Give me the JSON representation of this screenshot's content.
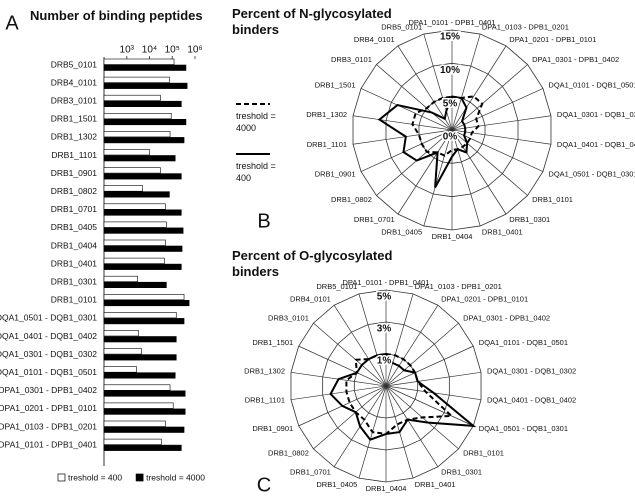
{
  "chart_data": [
    {
      "type": "barh",
      "panel": "A",
      "title": "Number of binding peptides",
      "categories": [
        "DRB5_0101",
        "DRB4_0101",
        "DRB3_0101",
        "DRB1_1501",
        "DRB1_1302",
        "DRB1_1101",
        "DRB1_0901",
        "DRB1_0802",
        "DRB1_0701",
        "DRB1_0405",
        "DRB1_0404",
        "DRB1_0401",
        "DRB1_0301",
        "DRB1_0101",
        "DQA1_0501 - DQB1_0301",
        "DQA1_0401 - DQB1_0402",
        "DQA1_0301 - DQB1_0302",
        "DQA1_0101 - DQB1_0501",
        "DPA1_0301 - DPB1_0402",
        "DPA1_0201 - DPB1_0101",
        "DPA1_0103 - DPB1_0201",
        "DPA1_0101 - DPB1_0401"
      ],
      "series": [
        {
          "name": "treshold = 400",
          "color": "#ffffff",
          "values": [
            120000,
            75000,
            30000,
            90000,
            80000,
            10000,
            30000,
            5000,
            50000,
            55000,
            50000,
            45000,
            3000,
            330000,
            150000,
            3300,
            4500,
            2700,
            80000,
            110000,
            50000,
            33000
          ]
        },
        {
          "name": "treshold = 4000",
          "color": "#000000",
          "values": [
            400000,
            450000,
            250000,
            400000,
            330000,
            135000,
            250000,
            75000,
            250000,
            300000,
            270000,
            250000,
            55000,
            550000,
            330000,
            150000,
            150000,
            135000,
            370000,
            370000,
            330000,
            250000
          ]
        }
      ],
      "xscale": "log",
      "xlim": [
        100,
        1000000
      ],
      "xticks": [
        {
          "value": 1000,
          "label": "10³"
        },
        {
          "value": 10000,
          "label": "10⁴"
        },
        {
          "value": 100000,
          "label": "10⁵"
        },
        {
          "value": 1000000,
          "label": "10⁶"
        }
      ]
    },
    {
      "type": "radar",
      "panel": "B",
      "title": "Percent of N-glycosylated binders",
      "categories": [
        "DPA1_0101 - DPB1_0401",
        "DPA1_0103 - DPB1_0201",
        "DPA1_0201 - DPB1_0101",
        "DPA1_0301 - DPB1_0402",
        "DQA1_0101 - DQB1_0501",
        "DQA1_0301 - DQB1_0302",
        "DQA1_0401 - DQB1_0402",
        "DQA1_0501 - DQB1_0301",
        "DRB1_0101",
        "DRB1_0301",
        "DRB1_0401",
        "DRB1_0404",
        "DRB1_0405",
        "DRB1_0701",
        "DRB1_0802",
        "DRB1_0901",
        "DRB1_1101",
        "DRB1_1302",
        "DRB1_1501",
        "DRB3_0101",
        "DRB4_0101",
        "DRB5_0101"
      ],
      "series": [
        {
          "name": "treshold = 4000",
          "color": "#000000",
          "dash": true,
          "values": [
            5,
            5,
            6,
            6,
            4,
            4,
            3,
            3,
            3,
            3,
            3,
            3,
            4,
            4,
            5,
            5,
            5,
            6,
            6,
            5,
            5,
            5
          ]
        },
        {
          "name": "treshold = 400",
          "color": "#000000",
          "dash": false,
          "values": [
            5,
            5,
            4,
            2,
            2,
            2,
            2,
            2,
            3,
            4,
            3,
            4,
            9,
            4,
            7,
            8,
            7,
            11,
            9,
            4,
            2,
            3
          ]
        }
      ],
      "rlim": [
        0,
        15
      ],
      "rticks": [
        {
          "value": 0,
          "label": "0%"
        },
        {
          "value": 5,
          "label": "5%"
        },
        {
          "value": 10,
          "label": "10%"
        },
        {
          "value": 15,
          "label": "15%"
        }
      ]
    },
    {
      "type": "radar",
      "panel": "C",
      "title": "Percent of O-glycosylated binders",
      "categories": [
        "DPA1_0101 - DPB1_0401",
        "DPA1_0103 - DPB1_0201",
        "DPA1_0201 - DPB1_0101",
        "DPA1_0301 - DPB1_0402",
        "DQA1_0101 - DQB1_0501",
        "DQA1_0301 - DQB1_0302",
        "DQA1_0401 - DQB1_0402",
        "DQA1_0501 - DQB1_0301",
        "DRB1_0101",
        "DRB1_0301",
        "DRB1_0401",
        "DRB1_0404",
        "DRB1_0405",
        "DRB1_0701",
        "DRB1_0802",
        "DRB1_0901",
        "DRB1_1101",
        "DRB1_1302",
        "DRB1_1501",
        "DRB3_0101",
        "DRB4_0101",
        "DRB5_0101"
      ],
      "series": [
        {
          "color": "#000000",
          "dash": true,
          "values": [
            1,
            1,
            1,
            1,
            1,
            1,
            1.5,
            3.5,
            2,
            1.5,
            1.5,
            2,
            2,
            1.5,
            1.5,
            1.5,
            1.5,
            1.5,
            1,
            1.5,
            1,
            1
          ]
        },
        {
          "color": "#000000",
          "dash": false,
          "values": [
            1,
            0.5,
            0.5,
            0.5,
            1,
            1,
            2,
            5,
            2.5,
            1.5,
            2,
            2,
            2.5,
            2,
            1.5,
            2,
            2.5,
            2,
            1,
            1,
            1,
            1
          ]
        }
      ],
      "rlim": [
        -1,
        5
      ],
      "rticks": [
        {
          "value": 1,
          "label": "1%"
        },
        {
          "value": 3,
          "label": "3%"
        },
        {
          "value": 5,
          "label": "5%"
        }
      ]
    }
  ]
}
